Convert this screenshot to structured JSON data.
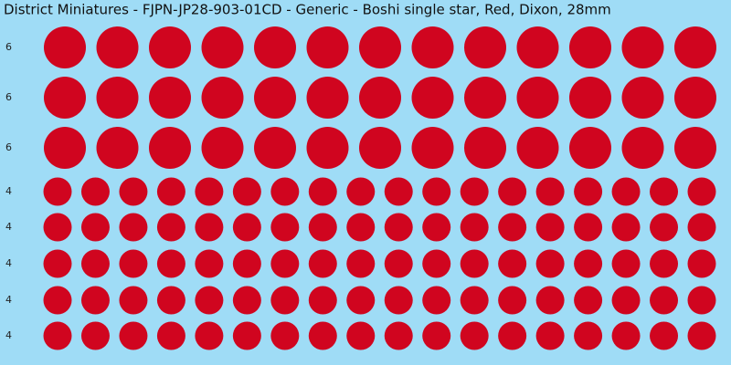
{
  "header": {
    "title": "District Miniatures - FJPN-JP28-903-01CD - Generic - Boshi single star, Red, Dixon, 28mm"
  },
  "rows": [
    {
      "label": "6"
    },
    {
      "label": "6"
    },
    {
      "label": "6"
    },
    {
      "label": "4"
    },
    {
      "label": "4"
    },
    {
      "label": "4"
    },
    {
      "label": "4"
    },
    {
      "label": "4"
    }
  ]
}
